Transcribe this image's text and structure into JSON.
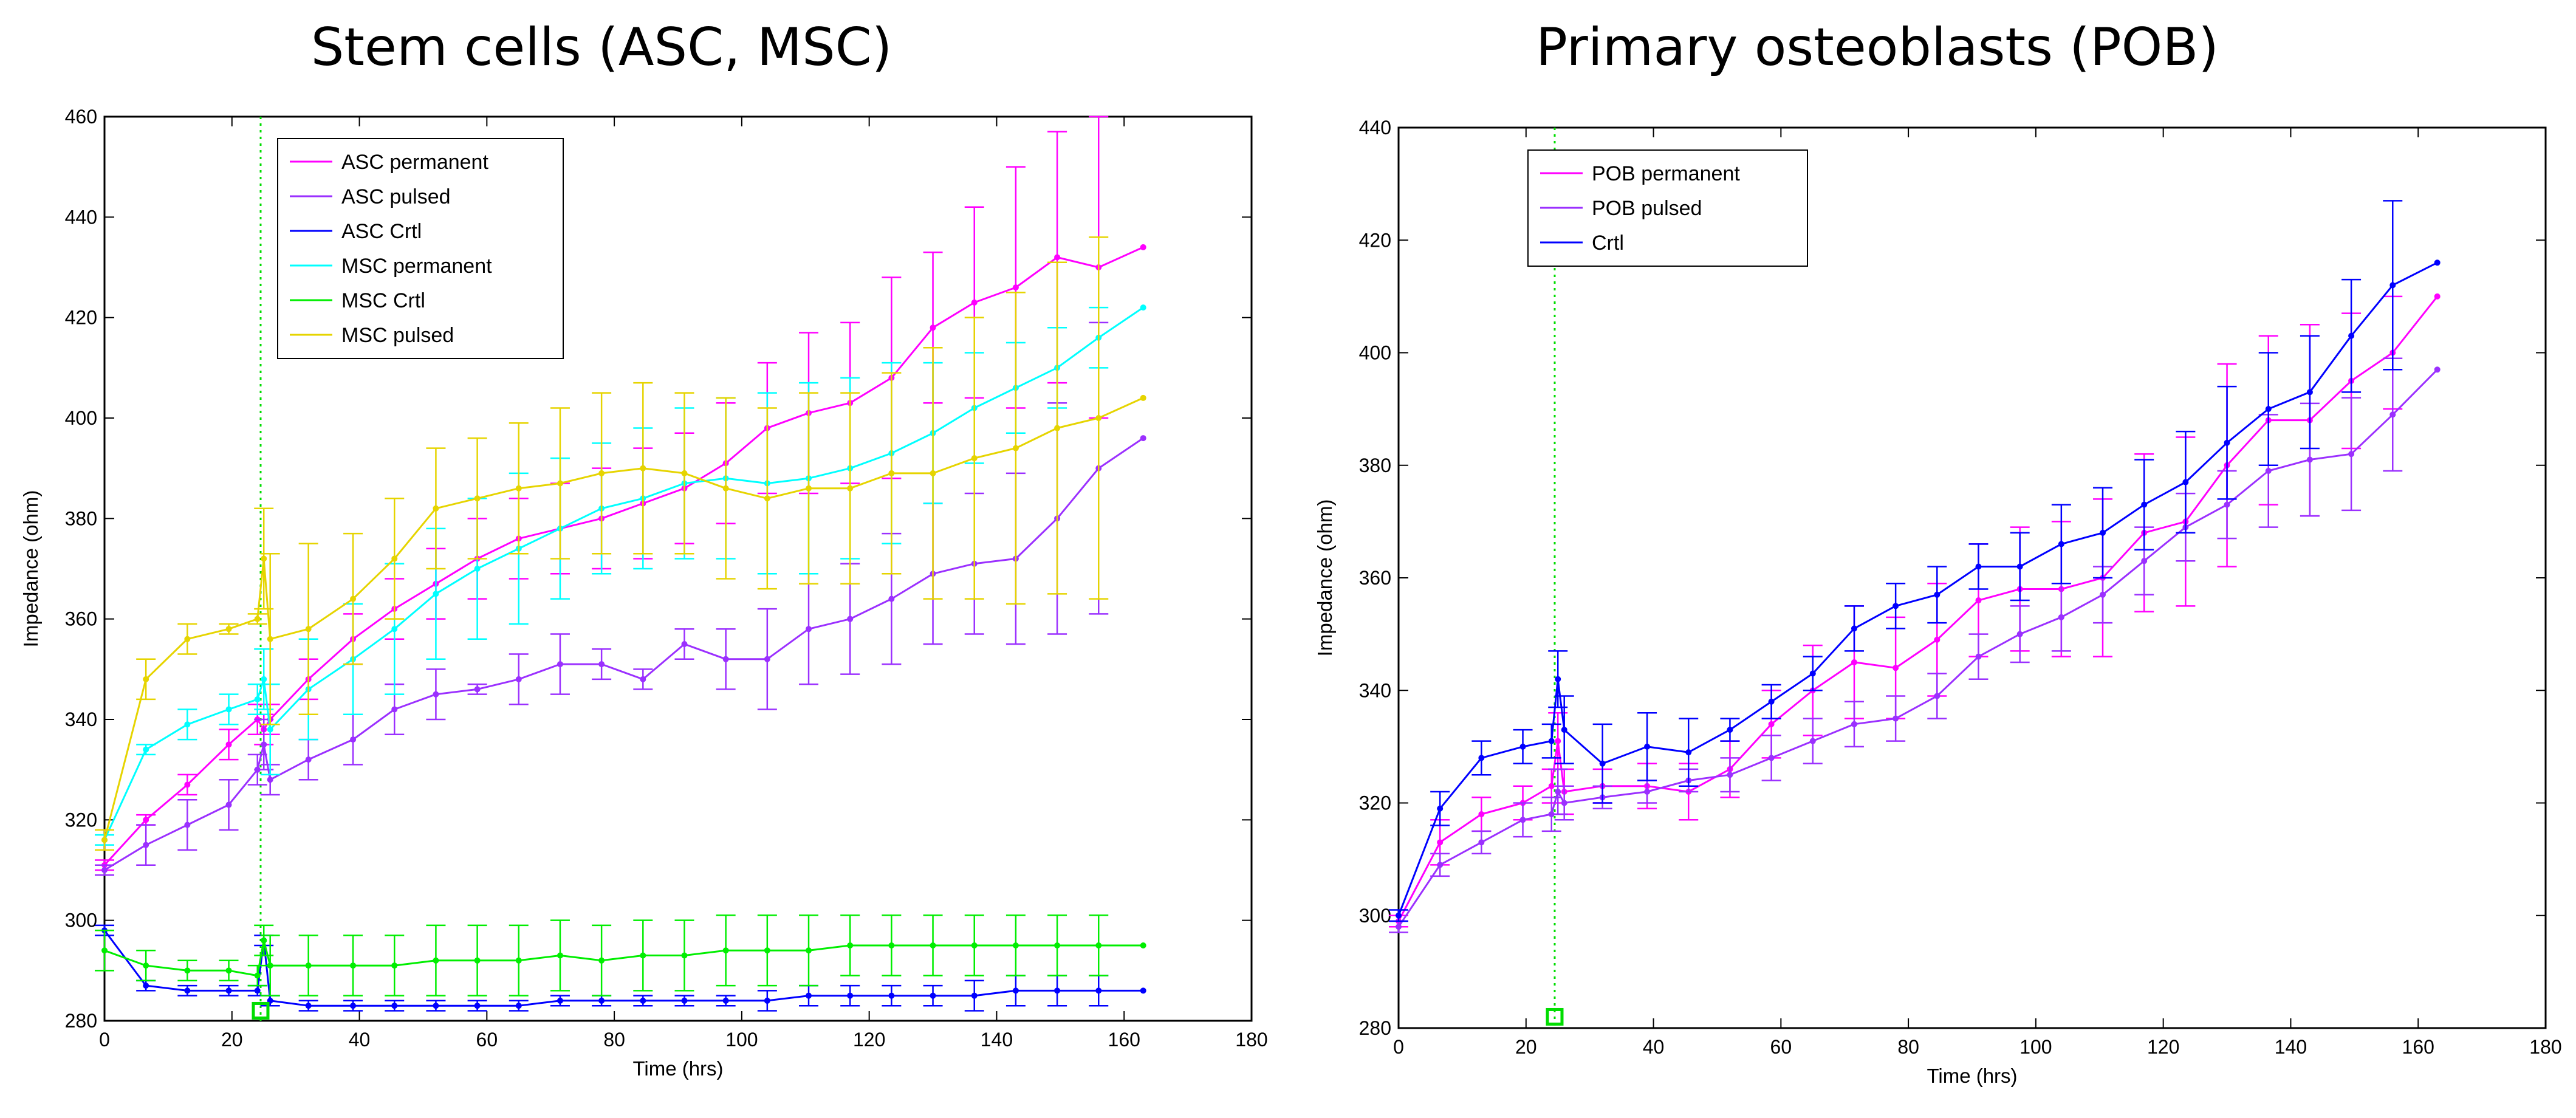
{
  "chart_data": [
    {
      "type": "line",
      "title": "Stem cells (ASC, MSC)",
      "xlabel": "Time (hrs)",
      "ylabel": "Impedance (ohm)",
      "xlim": [
        0,
        180
      ],
      "ylim": [
        280,
        460
      ],
      "xticks": [
        0,
        20,
        40,
        60,
        80,
        100,
        120,
        140,
        160,
        180
      ],
      "yticks": [
        280,
        300,
        320,
        340,
        360,
        380,
        400,
        420,
        440,
        460
      ],
      "legend_position": "top-left",
      "event_line_x": 24.5,
      "event_marker": {
        "x": 24.5,
        "y": 282
      },
      "series": [
        {
          "name": "ASC permanent",
          "color": "#ff00ff",
          "x": [
            0,
            6.5,
            13,
            19.5,
            24,
            25,
            26,
            32,
            39,
            45.5,
            52,
            58.5,
            65,
            71.5,
            78,
            84.5,
            91,
            97.5,
            104,
            110.5,
            117,
            123.5,
            130,
            136.5,
            143,
            149.5,
            156,
            163
          ],
          "y": [
            311,
            320,
            327,
            335,
            340,
            338,
            340,
            348,
            356,
            362,
            367,
            372,
            376,
            378,
            380,
            383,
            386,
            391,
            398,
            401,
            403,
            408,
            418,
            423,
            426,
            432,
            430,
            434
          ],
          "err": [
            1,
            1,
            2,
            3,
            3,
            3,
            3,
            4,
            5,
            6,
            7,
            8,
            8,
            9,
            10,
            11,
            11,
            12,
            13,
            16,
            16,
            20,
            15,
            19,
            24,
            25,
            30,
            0
          ]
        },
        {
          "name": "ASC pulsed",
          "color": "#9b30ff",
          "x": [
            0,
            6.5,
            13,
            19.5,
            24,
            25,
            26,
            32,
            39,
            45.5,
            52,
            58.5,
            65,
            71.5,
            78,
            84.5,
            91,
            97.5,
            104,
            110.5,
            117,
            123.5,
            130,
            136.5,
            143,
            149.5,
            156,
            163
          ],
          "y": [
            310,
            315,
            319,
            323,
            330,
            335,
            328,
            332,
            336,
            342,
            345,
            346,
            348,
            351,
            351,
            348,
            355,
            352,
            352,
            358,
            360,
            364,
            369,
            371,
            372,
            380,
            390,
            396
          ],
          "err": [
            1,
            4,
            5,
            5,
            3,
            5,
            3,
            4,
            5,
            5,
            5,
            1,
            5,
            6,
            3,
            2,
            3,
            6,
            10,
            11,
            11,
            13,
            14,
            14,
            17,
            23,
            29,
            0
          ]
        },
        {
          "name": "ASC Crtl",
          "color": "#0000ff",
          "x": [
            0,
            6.5,
            13,
            19.5,
            24,
            25,
            26,
            32,
            39,
            45.5,
            52,
            58.5,
            65,
            71.5,
            78,
            84.5,
            91,
            97.5,
            104,
            110.5,
            117,
            123.5,
            130,
            136.5,
            143,
            149.5,
            156,
            163
          ],
          "y": [
            298,
            287,
            286,
            286,
            286,
            296,
            284,
            283,
            283,
            283,
            283,
            283,
            283,
            284,
            284,
            284,
            284,
            284,
            284,
            285,
            285,
            285,
            285,
            285,
            286,
            286,
            286,
            286
          ],
          "err": [
            1,
            1,
            1,
            1,
            1,
            1,
            1,
            1,
            1,
            1,
            1,
            1,
            1,
            1,
            1,
            1,
            1,
            1,
            2,
            2,
            2,
            2,
            2,
            3,
            3,
            3,
            3,
            0
          ]
        },
        {
          "name": "MSC permanent",
          "color": "#00ffff",
          "x": [
            0,
            6.5,
            13,
            19.5,
            24,
            25,
            26,
            32,
            39,
            45.5,
            52,
            58.5,
            65,
            71.5,
            78,
            84.5,
            91,
            97.5,
            104,
            110.5,
            117,
            123.5,
            130,
            136.5,
            143,
            149.5,
            156,
            163
          ],
          "y": [
            316,
            334,
            339,
            342,
            344,
            348,
            338,
            346,
            352,
            358,
            365,
            370,
            374,
            378,
            382,
            384,
            387,
            388,
            387,
            388,
            390,
            393,
            397,
            402,
            406,
            410,
            416,
            422
          ],
          "err": [
            1,
            1,
            3,
            3,
            3,
            6,
            9,
            10,
            11,
            13,
            13,
            14,
            15,
            14,
            13,
            14,
            15,
            16,
            18,
            19,
            18,
            18,
            14,
            11,
            9,
            8,
            6,
            0
          ]
        },
        {
          "name": "MSC Crtl",
          "color": "#00ee00",
          "x": [
            0,
            6.5,
            13,
            19.5,
            24,
            25,
            26,
            32,
            39,
            45.5,
            52,
            58.5,
            65,
            71.5,
            78,
            84.5,
            91,
            97.5,
            104,
            110.5,
            117,
            123.5,
            130,
            136.5,
            143,
            149.5,
            156,
            163
          ],
          "y": [
            294,
            291,
            290,
            290,
            289,
            296,
            291,
            291,
            291,
            291,
            292,
            292,
            292,
            293,
            292,
            293,
            293,
            294,
            294,
            294,
            295,
            295,
            295,
            295,
            295,
            295,
            295,
            295
          ],
          "err": [
            4,
            3,
            2,
            2,
            2,
            3,
            6,
            6,
            6,
            6,
            7,
            7,
            7,
            7,
            7,
            7,
            7,
            7,
            7,
            7,
            6,
            6,
            6,
            6,
            6,
            6,
            6,
            0
          ]
        },
        {
          "name": "MSC pulsed",
          "color": "#e6d400",
          "x": [
            0,
            6.5,
            13,
            19.5,
            24,
            25,
            26,
            32,
            39,
            45.5,
            52,
            58.5,
            65,
            71.5,
            78,
            84.5,
            91,
            97.5,
            104,
            110.5,
            117,
            123.5,
            130,
            136.5,
            143,
            149.5,
            156,
            163
          ],
          "y": [
            316,
            348,
            356,
            358,
            360,
            372,
            356,
            358,
            364,
            372,
            382,
            384,
            386,
            387,
            389,
            390,
            389,
            386,
            384,
            386,
            386,
            389,
            389,
            392,
            394,
            398,
            400,
            404
          ],
          "err": [
            2,
            4,
            3,
            1,
            1,
            10,
            17,
            17,
            13,
            12,
            12,
            12,
            13,
            15,
            16,
            17,
            16,
            18,
            18,
            19,
            19,
            20,
            25,
            28,
            31,
            33,
            36,
            0
          ]
        }
      ]
    },
    {
      "type": "line",
      "title": "Primary osteoblasts (POB)",
      "xlabel": "Time (hrs)",
      "ylabel": "Impedance (ohm)",
      "xlim": [
        0,
        180
      ],
      "ylim": [
        280,
        440
      ],
      "xticks": [
        0,
        20,
        40,
        60,
        80,
        100,
        120,
        140,
        160,
        180
      ],
      "yticks": [
        280,
        300,
        320,
        340,
        360,
        380,
        400,
        420,
        440
      ],
      "legend_position": "top-left",
      "event_line_x": 24.5,
      "event_marker": {
        "x": 24.5,
        "y": 282
      },
      "series": [
        {
          "name": "POB permanent",
          "color": "#ff00ff",
          "x": [
            0,
            6.5,
            13,
            19.5,
            24,
            25,
            26,
            32,
            39,
            45.5,
            52,
            58.5,
            65,
            71.5,
            78,
            84.5,
            91,
            97.5,
            104,
            110.5,
            117,
            123.5,
            130,
            136.5,
            143,
            149.5,
            156,
            163
          ],
          "y": [
            299,
            313,
            318,
            320,
            323,
            331,
            322,
            323,
            323,
            322,
            326,
            334,
            340,
            345,
            344,
            349,
            356,
            358,
            358,
            360,
            368,
            370,
            380,
            388,
            388,
            395,
            400,
            410
          ],
          "err": [
            1,
            4,
            3,
            3,
            3,
            5,
            4,
            3,
            4,
            5,
            5,
            6,
            8,
            10,
            9,
            10,
            10,
            11,
            12,
            14,
            14,
            15,
            18,
            15,
            17,
            12,
            10,
            0
          ]
        },
        {
          "name": "POB pulsed",
          "color": "#9b30ff",
          "x": [
            0,
            6.5,
            13,
            19.5,
            24,
            25,
            26,
            32,
            39,
            45.5,
            52,
            58.5,
            65,
            71.5,
            78,
            84.5,
            91,
            97.5,
            104,
            110.5,
            117,
            123.5,
            130,
            136.5,
            143,
            149.5,
            156,
            163
          ],
          "y": [
            298,
            309,
            313,
            317,
            318,
            322,
            320,
            321,
            322,
            324,
            325,
            328,
            331,
            334,
            335,
            339,
            346,
            350,
            353,
            357,
            363,
            369,
            373,
            379,
            381,
            382,
            389,
            397
          ],
          "err": [
            1,
            2,
            2,
            3,
            3,
            4,
            3,
            2,
            2,
            2,
            3,
            4,
            4,
            4,
            4,
            4,
            4,
            5,
            6,
            5,
            6,
            6,
            6,
            10,
            10,
            10,
            10,
            0
          ]
        },
        {
          "name": "Crtl",
          "color": "#0000ff",
          "x": [
            0,
            6.5,
            13,
            19.5,
            24,
            25,
            26,
            32,
            39,
            45.5,
            52,
            58.5,
            65,
            71.5,
            78,
            84.5,
            91,
            97.5,
            104,
            110.5,
            117,
            123.5,
            130,
            136.5,
            143,
            149.5,
            156,
            163
          ],
          "y": [
            300,
            319,
            328,
            330,
            331,
            342,
            333,
            327,
            330,
            329,
            333,
            338,
            343,
            351,
            355,
            357,
            362,
            362,
            366,
            368,
            373,
            377,
            384,
            390,
            393,
            403,
            412,
            416
          ],
          "err": [
            1,
            3,
            3,
            3,
            3,
            5,
            6,
            7,
            6,
            6,
            2,
            3,
            3,
            4,
            4,
            5,
            4,
            6,
            7,
            8,
            8,
            9,
            10,
            10,
            10,
            10,
            15,
            0
          ]
        }
      ]
    }
  ]
}
